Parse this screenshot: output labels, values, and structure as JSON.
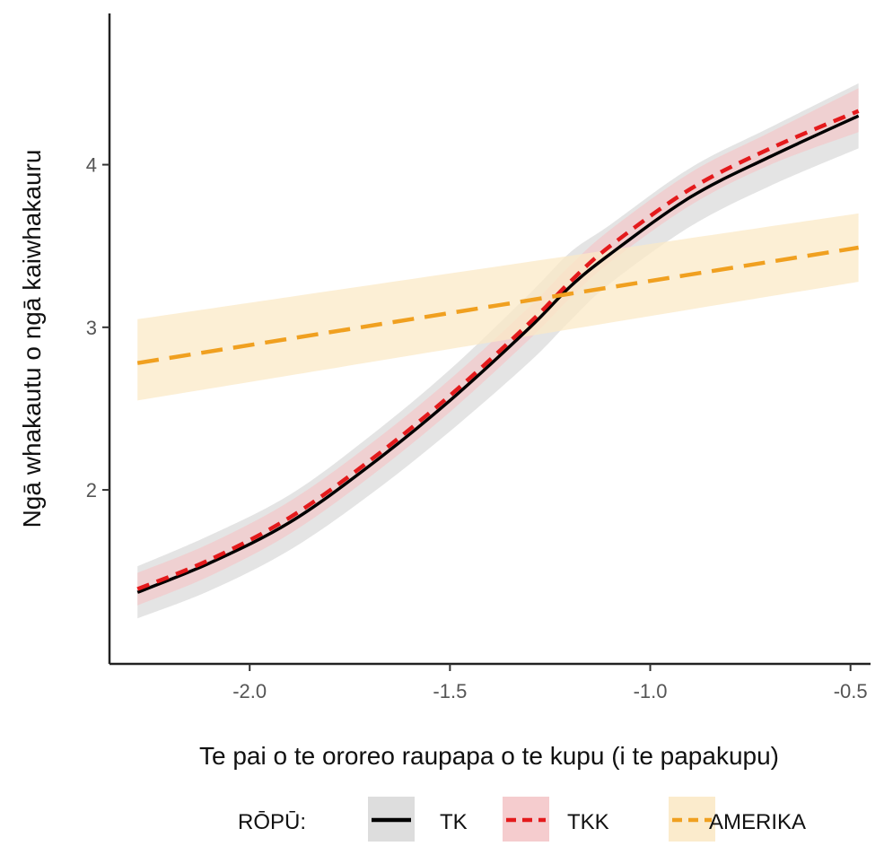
{
  "chart_data": {
    "type": "line",
    "xlabel": "Te pai o te ororeo raupapa o te kupu (i te papakupu)",
    "ylabel": "Ngā whakautu o ngā kaiwhakauru",
    "xlim": [
      -2.35,
      -0.45
    ],
    "ylim": [
      0.93,
      4.93
    ],
    "x_ticks": [
      -2.0,
      -1.5,
      -1.0,
      -0.5
    ],
    "x_tick_labels": [
      "-2.0",
      "-1.5",
      "-1.0",
      "-0.5"
    ],
    "y_ticks": [
      2,
      3,
      4
    ],
    "y_tick_labels": [
      "2",
      "3",
      "4"
    ],
    "grid": false,
    "legend": {
      "title": "RŌPŪ:",
      "position": "bottom"
    },
    "series": [
      {
        "name": "TK",
        "color": "#000000",
        "band_color": "#d9d9d9",
        "dash": "solid",
        "x": [
          -2.28,
          -2.1,
          -1.9,
          -1.7,
          -1.5,
          -1.3,
          -1.2,
          -1.1,
          -0.9,
          -0.7,
          -0.48
        ],
        "y": [
          1.37,
          1.55,
          1.8,
          2.15,
          2.55,
          3.0,
          3.25,
          3.45,
          3.8,
          4.05,
          4.3
        ],
        "lower": [
          1.21,
          1.38,
          1.63,
          1.97,
          2.36,
          2.79,
          3.04,
          3.27,
          3.62,
          3.87,
          4.1
        ],
        "upper": [
          1.53,
          1.72,
          1.97,
          2.33,
          2.74,
          3.21,
          3.46,
          3.63,
          3.98,
          4.23,
          4.5
        ]
      },
      {
        "name": "TKK",
        "color": "#e41a1c",
        "band_color": "#f4c7c9",
        "dash": "dashed",
        "x": [
          -2.28,
          -2.1,
          -1.9,
          -1.7,
          -1.5,
          -1.3,
          -1.2,
          -1.1,
          -0.9,
          -0.7,
          -0.48
        ],
        "y": [
          1.39,
          1.57,
          1.83,
          2.18,
          2.58,
          3.03,
          3.28,
          3.5,
          3.85,
          4.1,
          4.33
        ],
        "lower": [
          1.29,
          1.47,
          1.73,
          2.08,
          2.48,
          2.93,
          3.18,
          3.4,
          3.75,
          4.0,
          4.2
        ],
        "upper": [
          1.49,
          1.67,
          1.93,
          2.28,
          2.68,
          3.13,
          3.38,
          3.6,
          3.95,
          4.2,
          4.47
        ]
      },
      {
        "name": "AMERIKA",
        "color": "#f0a020",
        "band_color": "#fbe9c7",
        "dash": "dashed",
        "x": [
          -2.28,
          -0.48
        ],
        "y": [
          2.78,
          3.49
        ],
        "lower": [
          2.55,
          3.28
        ],
        "upper": [
          3.05,
          3.7
        ]
      }
    ]
  }
}
